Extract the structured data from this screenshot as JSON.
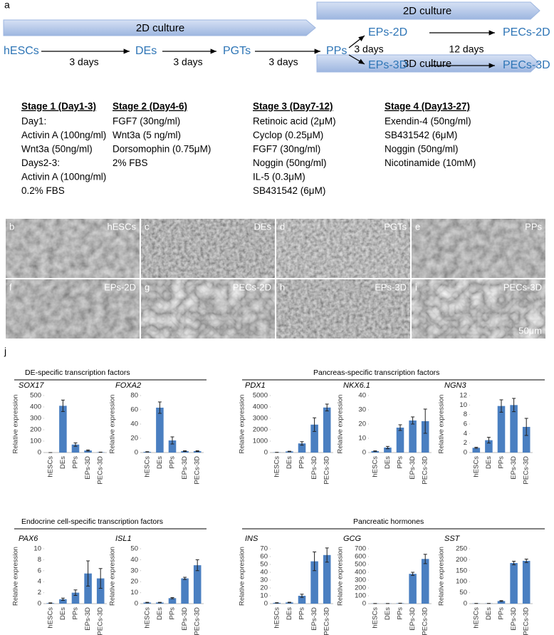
{
  "panel_a": {
    "label": "a",
    "banners": [
      "2D culture",
      "2D culture",
      "3D culture"
    ],
    "nodes": [
      "hESCs",
      "DEs",
      "PGTs",
      "PPs",
      "EPs-2D",
      "PECs-2D",
      "EPs-3D",
      "PECs-3D"
    ],
    "edges": [
      "3 days",
      "3 days",
      "3 days",
      "3 days",
      "12 days"
    ],
    "stages": [
      {
        "title": "Stage 1 (Day1-3)",
        "lines": [
          "Day1:",
          "Activin A (100ng/ml)",
          "Wnt3a  (50ng/ml)",
          "Days2-3:",
          "Activin A (100ng/ml)",
          "0.2% FBS"
        ]
      },
      {
        "title": "Stage 2 (Day4-6)",
        "lines": [
          "FGF7  (30ng/ml)",
          "Wnt3a (5 ng/ml)",
          "Dorsomophin (0.75μM)",
          "2% FBS"
        ]
      },
      {
        "title": "Stage 3 (Day7-12)",
        "lines": [
          "Retinoic acid (2μM)",
          "Cyclop  (0.25μM)",
          "FGF7  (30ng/ml)",
          "Noggin  (50ng/ml)",
          "IL-5  (0.3μM)",
          "SB431542 (6μM)"
        ]
      },
      {
        "title": "Stage 4 (Day13-27)",
        "lines": [
          "Exendin-4 (50ng/ml)",
          "SB431542 (6μM)",
          "Noggin  (50ng/ml)",
          "Nicotinamide  (10mM)"
        ]
      }
    ]
  },
  "micrographs": {
    "panels": [
      {
        "letter": "b",
        "label": "hESCs"
      },
      {
        "letter": "c",
        "label": "DEs"
      },
      {
        "letter": "d",
        "label": "PGTs"
      },
      {
        "letter": "e",
        "label": "PPs"
      },
      {
        "letter": "f",
        "label": "EPs-2D"
      },
      {
        "letter": "g",
        "label": "PECs-2D"
      },
      {
        "letter": "h",
        "label": "EPs-3D"
      },
      {
        "letter": "i",
        "label": "PECs-3D"
      }
    ],
    "scale": "50μm"
  },
  "panel_j": {
    "label": "j",
    "groups": [
      "DE-specific transcription factors",
      "Pancreas-specific transcription factors",
      "Endocrine cell-specific transcription factors",
      "Pancreatic hormones"
    ]
  },
  "chart_data": [
    {
      "type": "bar",
      "title": "SOX17",
      "y_label": "Relative expression",
      "color": "#4a7fc1",
      "categories": [
        "hESCs",
        "DEs",
        "PPs",
        "EPs-3D",
        "PECs-3D"
      ],
      "values": [
        0,
        410,
        70,
        18,
        3
      ],
      "errors": [
        0,
        50,
        15,
        5,
        1
      ],
      "ylim": [
        0,
        500
      ],
      "yticks": [
        0,
        100,
        200,
        300,
        400,
        500
      ]
    },
    {
      "type": "bar",
      "title": "FOXA2",
      "y_label": "Relative expression",
      "color": "#4a7fc1",
      "categories": [
        "hESCs",
        "DEs",
        "PPs",
        "EPs-3D",
        "PECs-3D"
      ],
      "values": [
        1,
        63,
        17,
        2,
        2
      ],
      "errors": [
        0.3,
        8,
        5,
        0.5,
        0.5
      ],
      "ylim": [
        0,
        80
      ],
      "yticks": [
        0,
        20,
        40,
        60,
        80
      ]
    },
    {
      "type": "bar",
      "title": "PDX1",
      "y_label": "Relative expression",
      "color": "#4a7fc1",
      "categories": [
        "hESCs",
        "DEs",
        "PPs",
        "EPs-3D",
        "PECs-3D"
      ],
      "values": [
        20,
        100,
        800,
        2450,
        3950
      ],
      "errors": [
        5,
        20,
        150,
        600,
        300
      ],
      "ylim": [
        0,
        5000
      ],
      "yticks": [
        0,
        1000,
        2000,
        3000,
        4000,
        5000
      ]
    },
    {
      "type": "bar",
      "title": "NKX6.1",
      "y_label": "Relative expression",
      "color": "#4a7fc1",
      "categories": [
        "hESCs",
        "DEs",
        "PPs",
        "EPs-3D",
        "PECs-3D"
      ],
      "values": [
        1,
        3.5,
        17.5,
        22.5,
        22
      ],
      "errors": [
        0.2,
        0.8,
        2,
        2.5,
        8.5
      ],
      "ylim": [
        0,
        40
      ],
      "yticks": [
        0,
        10,
        20,
        30,
        40
      ]
    },
    {
      "type": "bar",
      "title": "NGN3",
      "y_label": "Relative expression",
      "color": "#4a7fc1",
      "categories": [
        "hESCs",
        "DEs",
        "PPs",
        "EPs-3D",
        "PECs-3D"
      ],
      "values": [
        1,
        2.6,
        9.8,
        10,
        5.4
      ],
      "errors": [
        0.1,
        0.6,
        1.3,
        1.4,
        1.8
      ],
      "ylim": [
        0,
        12
      ],
      "yticks": [
        0,
        2,
        4,
        6,
        8,
        10,
        12
      ]
    },
    {
      "type": "bar",
      "title": "PAX6",
      "y_label": "Relative expression",
      "color": "#4a7fc1",
      "categories": [
        "hESCs",
        "DEs",
        "PPs",
        "EPs-3D",
        "PECs-3D"
      ],
      "values": [
        0.1,
        0.8,
        2,
        5.5,
        4.6
      ],
      "errors": [
        0.05,
        0.2,
        0.5,
        2.3,
        1.8
      ],
      "ylim": [
        0,
        10
      ],
      "yticks": [
        0,
        2,
        4,
        6,
        8,
        10
      ]
    },
    {
      "type": "bar",
      "title": "ISL1",
      "y_label": "Relative expression",
      "color": "#4a7fc1",
      "categories": [
        "hESCs",
        "DEs",
        "PPs",
        "EPs-3D",
        "PECs-3D"
      ],
      "values": [
        1,
        1,
        5,
        23,
        35
      ],
      "errors": [
        0.2,
        0.2,
        0.5,
        1,
        5
      ],
      "ylim": [
        0,
        50
      ],
      "yticks": [
        0,
        10,
        20,
        30,
        40,
        50
      ]
    },
    {
      "type": "bar",
      "title": "INS",
      "y_label": "Relative expression",
      "color": "#4a7fc1",
      "categories": [
        "hESCs",
        "DEs",
        "PPs",
        "EPs-3D",
        "PECs-3D"
      ],
      "values": [
        1,
        1.5,
        10,
        54,
        62
      ],
      "errors": [
        0.2,
        0.3,
        2,
        12,
        9
      ],
      "ylim": [
        0,
        70
      ],
      "yticks": [
        0,
        10,
        20,
        30,
        40,
        50,
        60,
        70
      ]
    },
    {
      "type": "bar",
      "title": "GCG",
      "y_label": "Relative expression",
      "color": "#4a7fc1",
      "categories": [
        "hESCs",
        "DEs",
        "PPs",
        "EPs-3D",
        "PECs-3D"
      ],
      "values": [
        2,
        2,
        5,
        380,
        570
      ],
      "errors": [
        0.5,
        0.5,
        1,
        20,
        60
      ],
      "ylim": [
        0,
        700
      ],
      "yticks": [
        0,
        100,
        200,
        300,
        400,
        500,
        600,
        700
      ]
    },
    {
      "type": "bar",
      "title": "SST",
      "y_label": "Relative expression",
      "color": "#4a7fc1",
      "categories": [
        "hESCs",
        "DEs",
        "PPs",
        "EPs-3D",
        "PECs-3D"
      ],
      "values": [
        1,
        1,
        12,
        185,
        195
      ],
      "errors": [
        0.2,
        0.2,
        2,
        8,
        8
      ],
      "ylim": [
        0,
        250
      ],
      "yticks": [
        0,
        50,
        100,
        150,
        200,
        250
      ]
    }
  ]
}
